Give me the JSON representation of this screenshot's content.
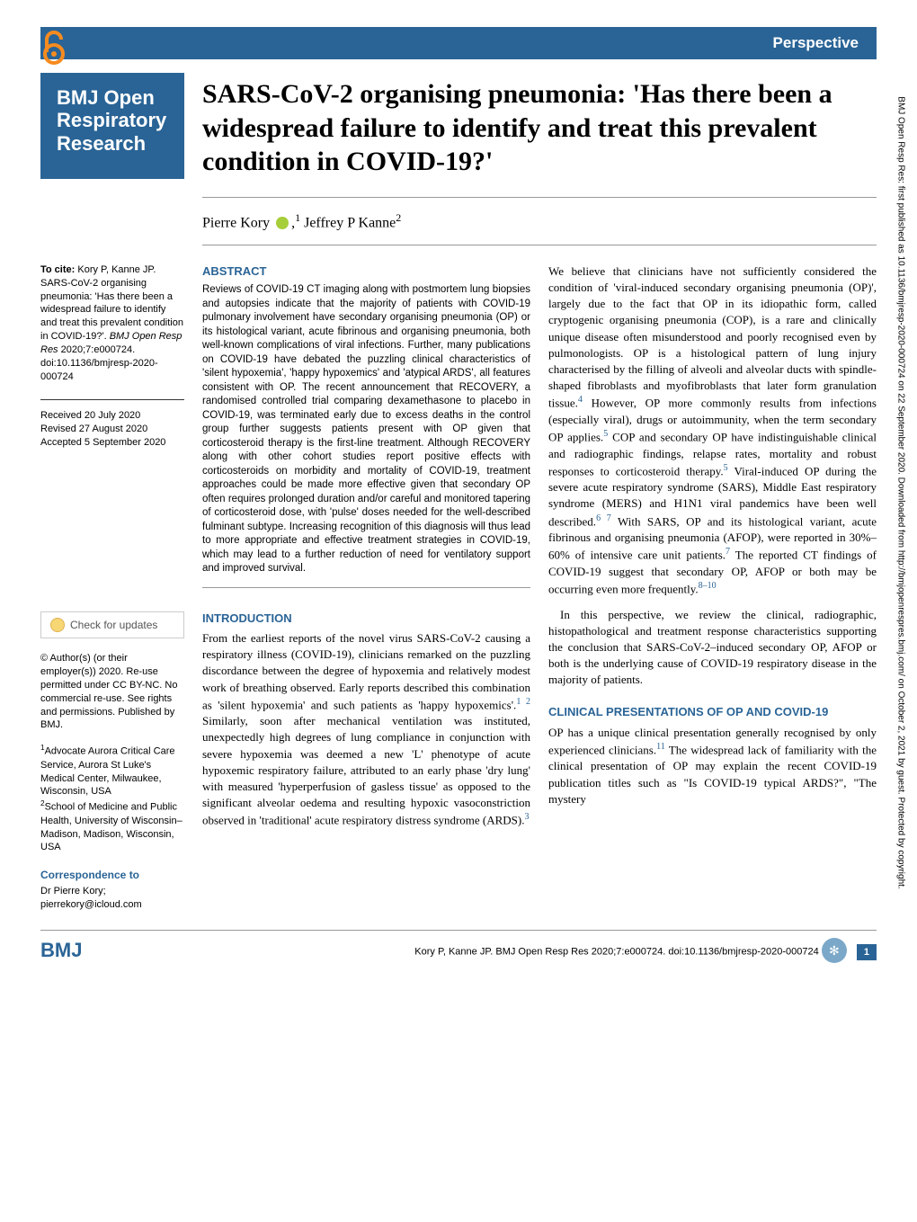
{
  "article_type": "Perspective",
  "journal": {
    "name_line1": "BMJ Open",
    "name_line2": "Respiratory",
    "name_line3": "Research"
  },
  "title": "SARS-CoV-2 organising pneumonia: 'Has there been a widespread failure to identify and treat this prevalent condition in COVID-19?'",
  "authors_html": "Pierre Kory <span class='orcid-icon'></span>,<sup>1</sup> Jeffrey P Kanne<sup>2</sup>",
  "citation": {
    "to_cite": "To cite:",
    "authors": "Kory P, Kanne JP.",
    "title": "SARS-CoV-2 organising pneumonia: 'Has there been a widespread failure to identify and treat this prevalent condition in COVID-19?'.",
    "journal": "BMJ Open Resp Res",
    "year_vol": "2020;7:e000724. doi:10.1136/bmjresp-2020-000724"
  },
  "dates": {
    "received": "Received 20 July 2020",
    "revised": "Revised 27 August 2020",
    "accepted": "Accepted 5 September 2020"
  },
  "check_updates": "Check for updates",
  "copyright": "© Author(s) (or their employer(s)) 2020. Re-use permitted under CC BY-NC. No commercial re-use. See rights and permissions. Published by BMJ.",
  "affiliations": {
    "a1": "Advocate Aurora Critical Care Service, Aurora St Luke's Medical Center, Milwaukee, Wisconsin, USA",
    "a2": "School of Medicine and Public Health, University of Wisconsin–Madison, Madison, Wisconsin, USA"
  },
  "correspondence": {
    "label": "Correspondence to",
    "text": "Dr Pierre Kory;\npierrekory@icloud.com"
  },
  "abstract": {
    "heading": "ABSTRACT",
    "text": "Reviews of COVID-19 CT imaging along with postmortem lung biopsies and autopsies indicate that the majority of patients with COVID-19 pulmonary involvement have secondary organising pneumonia (OP) or its histological variant, acute fibrinous and organising pneumonia, both well-known complications of viral infections. Further, many publications on COVID-19 have debated the puzzling clinical characteristics of 'silent hypoxemia', 'happy hypoxemics' and 'atypical ARDS', all features consistent with OP. The recent announcement that RECOVERY, a randomised controlled trial comparing dexamethasone to placebo in COVID-19, was terminated early due to excess deaths in the control group further suggests patients present with OP given that corticosteroid therapy is the first-line treatment. Although RECOVERY along with other cohort studies report positive effects with corticosteroids on morbidity and mortality of COVID-19, treatment approaches could be made more effective given that secondary OP often requires prolonged duration and/or careful and monitored tapering of corticosteroid dose, with 'pulse' doses needed for the well-described fulminant subtype. Increasing recognition of this diagnosis will thus lead to more appropriate and effective treatment strategies in COVID-19, which may lead to a further reduction of need for ventilatory support and improved survival."
  },
  "introduction": {
    "heading": "INTRODUCTION",
    "text_html": "From the earliest reports of the novel virus SARS-CoV-2 causing a respiratory illness (COVID-19), clinicians remarked on the puzzling discordance between the degree of hypoxemia and relatively modest work of breathing observed. Early reports described this combination as 'silent hypoxemia' and such patients as 'happy hypoxemics'.<span class='ref'>1 2</span> Similarly, soon after mechanical ventilation was instituted, unexpectedly high degrees of lung compliance in conjunction with severe hypoxemia was deemed a new 'L' phenotype of acute hypoxemic respiratory failure, attributed to an early phase 'dry lung' with measured 'hyperperfusion of gasless tissue' as opposed to the significant alveolar oedema and resulting hypoxic vasoconstriction observed in 'traditional' acute respiratory distress syndrome (ARDS).<span class='ref'>3</span>"
  },
  "col2_para1_html": "We believe that clinicians have not sufficiently considered the condition of 'viral-induced secondary organising pneumonia (OP)', largely due to the fact that OP in its idiopathic form, called cryptogenic organising pneumonia (COP), is a rare and clinically unique disease often misunderstood and poorly recognised even by pulmonologists. OP is a histological pattern of lung injury characterised by the filling of alveoli and alveolar ducts with spindle-shaped fibroblasts and myofibroblasts that later form granulation tissue.<span class='ref'>4</span> However, OP more commonly results from infections (especially viral), drugs or autoimmunity, when the term secondary OP applies.<span class='ref'>5</span> COP and secondary OP have indistinguishable clinical and radiographic findings, relapse rates, mortality and robust responses to corticosteroid therapy.<span class='ref'>5</span> Viral-induced OP during the severe acute respiratory syndrome (SARS), Middle East respiratory syndrome (MERS) and H1N1 viral pandemics have been well described.<span class='ref'>6 7</span> With SARS, OP and its histological variant, acute fibrinous and organising pneumonia (AFOP), were reported in 30%–60% of intensive care unit patients.<span class='ref'>7</span> The reported CT findings of COVID-19 suggest that secondary OP, AFOP or both may be occurring even more frequently.<span class='ref'>8–10</span>",
  "col2_para2": "In this perspective, we review the clinical, radiographic, histopathological and treatment response characteristics supporting the conclusion that SARS-CoV-2–induced secondary OP, AFOP or both is the underlying cause of COVID-19 respiratory disease in the majority of patients.",
  "clinical": {
    "heading": "CLINICAL PRESENTATIONS OF OP AND COVID-19",
    "text_html": "OP has a unique clinical presentation generally recognised by only experienced clinicians.<span class='ref'>11</span> The widespread lack of familiarity with the clinical presentation of OP may explain the recent COVID-19 publication titles such as \"Is COVID-19 typical ARDS?\", \"The mystery"
  },
  "footer": {
    "logo": "BMJ",
    "citation": "Kory P, Kanne JP. BMJ Open Resp Res 2020;7:e000724. doi:10.1136/bmjresp-2020-000724",
    "page": "1"
  },
  "side_citation": "BMJ Open Resp Res: first published as 10.1136/bmjresp-2020-000724 on 22 September 2020. Downloaded from http://bmjopenrespres.bmj.com/ on October 2, 2021 by guest. Protected by copyright.",
  "colors": {
    "brand": "#2a6496",
    "orcid": "#a6ce39"
  }
}
